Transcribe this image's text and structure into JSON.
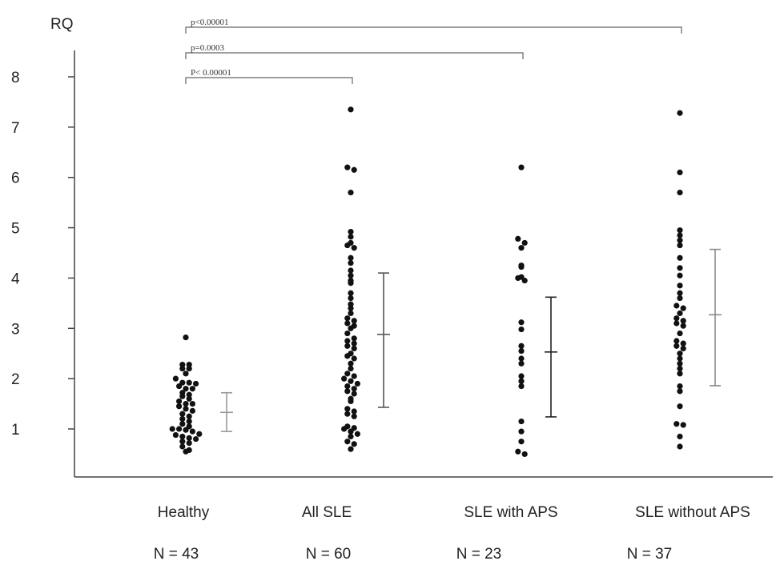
{
  "chart_data": {
    "type": "scatter",
    "title": "",
    "ylabel": "RQ",
    "xlabel": "",
    "ylim": [
      0,
      8.4
    ],
    "yticks": [
      1,
      2,
      3,
      4,
      5,
      6,
      7,
      8
    ],
    "grid": false,
    "categories": [
      "Healthy",
      "All SLE",
      "SLE with APS",
      "SLE without APS"
    ],
    "n_labels": [
      "N = 43",
      "N = 60",
      "N = 23",
      "N = 37"
    ],
    "colors": {
      "points": "#111111",
      "healthy_bar": "#9a9a9a",
      "sle_bar": "#555555",
      "sle_aps_bar": "#222222",
      "sle_noaps_bar": "#8a8a8a",
      "axis": "#444444",
      "bracket": "#666666"
    },
    "series": [
      {
        "category": "Healthy",
        "mean": 1.33,
        "sd_low": 0.95,
        "sd_high": 1.72,
        "values": [
          2.82,
          2.28,
          2.28,
          2.2,
          2.2,
          2.1,
          2.0,
          1.92,
          1.92,
          1.9,
          1.85,
          1.8,
          1.8,
          1.72,
          1.68,
          1.65,
          1.6,
          1.55,
          1.5,
          1.5,
          1.45,
          1.4,
          1.36,
          1.3,
          1.25,
          1.2,
          1.15,
          1.1,
          1.05,
          1.0,
          1.0,
          0.98,
          0.95,
          0.9,
          0.88,
          0.85,
          0.82,
          0.8,
          0.75,
          0.72,
          0.65,
          0.58,
          0.55
        ]
      },
      {
        "category": "All SLE",
        "mean": 2.88,
        "sd_low": 1.43,
        "sd_high": 4.1,
        "values": [
          7.35,
          6.2,
          6.15,
          5.7,
          4.92,
          4.82,
          4.7,
          4.65,
          4.6,
          4.4,
          4.3,
          4.15,
          4.05,
          3.95,
          3.9,
          3.7,
          3.6,
          3.48,
          3.4,
          3.3,
          3.2,
          3.15,
          3.1,
          3.05,
          3.0,
          2.9,
          2.8,
          2.75,
          2.7,
          2.65,
          2.6,
          2.5,
          2.45,
          2.4,
          2.3,
          2.2,
          2.1,
          2.05,
          2.0,
          1.95,
          1.9,
          1.85,
          1.8,
          1.75,
          1.7,
          1.6,
          1.55,
          1.4,
          1.35,
          1.3,
          1.25,
          1.05,
          1.02,
          1.0,
          0.95,
          0.9,
          0.85,
          0.75,
          0.7,
          0.6
        ]
      },
      {
        "category": "SLE with APS",
        "mean": 2.53,
        "sd_low": 1.24,
        "sd_high": 3.62,
        "values": [
          6.2,
          4.78,
          4.7,
          4.6,
          4.25,
          4.22,
          4.02,
          4.0,
          3.95,
          3.12,
          2.98,
          2.65,
          2.55,
          2.4,
          2.3,
          2.05,
          1.95,
          1.85,
          1.15,
          0.95,
          0.75,
          0.55,
          0.5
        ]
      },
      {
        "category": "SLE without APS",
        "mean": 3.27,
        "sd_low": 1.86,
        "sd_high": 4.57,
        "values": [
          7.28,
          6.1,
          5.7,
          4.95,
          4.85,
          4.75,
          4.65,
          4.4,
          4.2,
          4.05,
          3.85,
          3.7,
          3.6,
          3.45,
          3.4,
          3.3,
          3.2,
          3.15,
          3.1,
          3.05,
          2.9,
          2.75,
          2.7,
          2.65,
          2.6,
          2.5,
          2.4,
          2.3,
          2.2,
          2.1,
          1.85,
          1.75,
          1.45,
          1.1,
          1.08,
          0.85,
          0.65
        ]
      }
    ],
    "comparisons": [
      {
        "from": "Healthy",
        "to": "All SLE",
        "label": "P< 0.00001"
      },
      {
        "from": "Healthy",
        "to": "SLE with APS",
        "label": "p=0.0003"
      },
      {
        "from": "Healthy",
        "to": "SLE without APS",
        "label": "p<0.00001"
      }
    ]
  }
}
